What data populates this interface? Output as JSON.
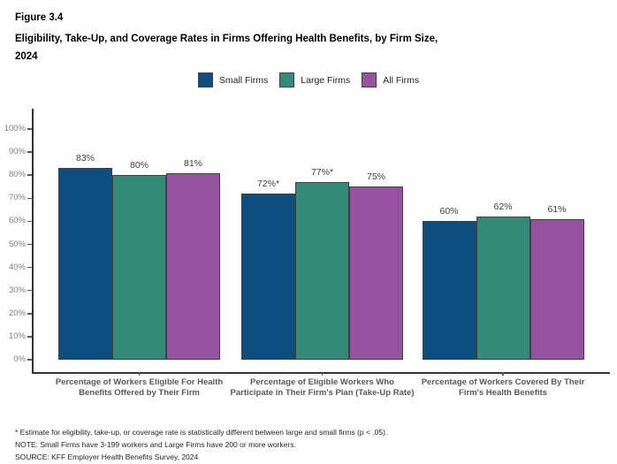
{
  "header": {
    "figure_label": "Figure 3.4",
    "title_line1": "Eligibility, Take-Up, and Coverage Rates in Firms Offering Health Benefits, by Firm Size,",
    "title_line2": "2024"
  },
  "chart_data": {
    "type": "bar",
    "title": "Eligibility, Take-Up, and Coverage Rates in Firms Offering Health Benefits, by Firm Size, 2024",
    "categories": [
      "Percentage of Workers Eligible For Health Benefits Offered by Their Firm",
      "Percentage of Eligible Workers Who Participate in Their Firm's Plan (Take-Up Rate)",
      "Percentage of Workers Covered By Their Firm's Health Benefits"
    ],
    "series": [
      {
        "name": "Small Firms",
        "color": "#0e4d80",
        "values": [
          83,
          72,
          60
        ],
        "labels": [
          "83%",
          "72%*",
          "60%"
        ]
      },
      {
        "name": "Large Firms",
        "color": "#338a76",
        "values": [
          80,
          77,
          62
        ],
        "labels": [
          "80%",
          "77%*",
          "62%"
        ]
      },
      {
        "name": "All Firms",
        "color": "#9452a0",
        "values": [
          81,
          75,
          61
        ],
        "labels": [
          "81%",
          "75%",
          "61%"
        ]
      }
    ],
    "xlabel": "",
    "ylabel": "",
    "ylim": [
      0,
      100
    ],
    "ytick_step": 10,
    "ytick_suffix": "%",
    "grid": false,
    "legend_position": "top",
    "bar_border_color": "#404040"
  },
  "footnotes": {
    "asterisk": "* Estimate for eligibility, take-up, or coverage rate is statistically different between large and small firms (p < .05).",
    "note": "NOTE: Small Firms have 3-199 workers and Large Firms have 200 or more workers.",
    "source": "SOURCE: KFF Employer Health Benefits Survey, 2024"
  }
}
